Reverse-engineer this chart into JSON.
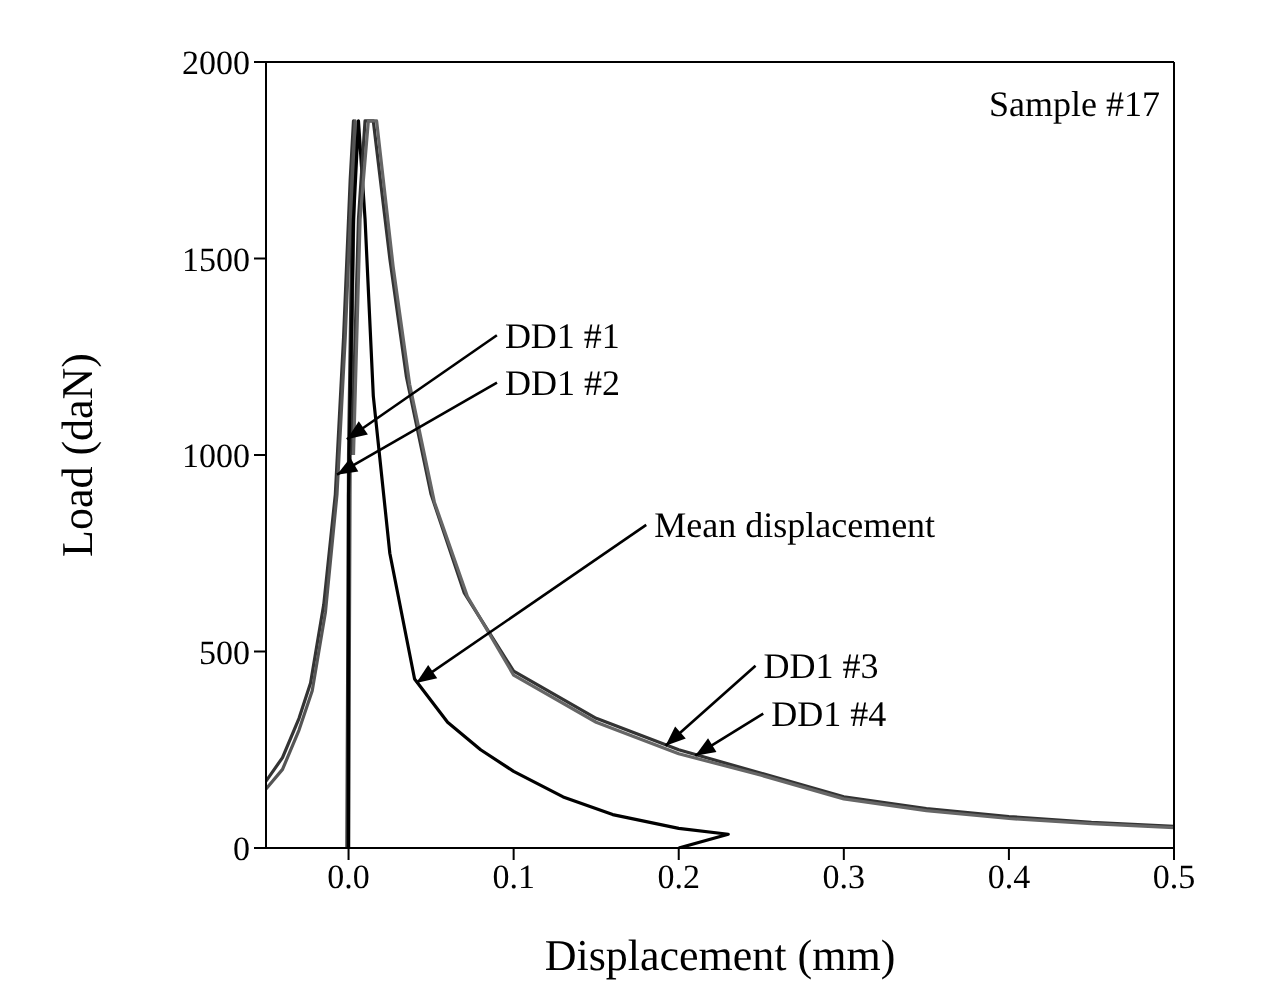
{
  "chart_data": {
    "type": "line",
    "xlabel": "Displacement (mm)",
    "ylabel": "Load (daN)",
    "xlim": [
      -0.05,
      0.5
    ],
    "xticks": [
      {
        "value": 0,
        "label": "0.0"
      },
      0.1,
      0.2,
      0.3,
      0.4,
      0.5
    ],
    "ylim": [
      0,
      2000
    ],
    "yticks": [
      0,
      500,
      1000,
      1500,
      2000
    ],
    "marker": "none",
    "line_style": "solid",
    "series": [
      {
        "color": "#333333",
        "x": [
          -0.05,
          -0.04,
          -0.03,
          -0.023,
          -0.015,
          -0.008,
          -0.003,
          0.001,
          0.003,
          0.0,
          -0.001
        ],
        "values": [
          170,
          230,
          330,
          420,
          620,
          900,
          1300,
          1700,
          1850,
          1000,
          0
        ]
      },
      {
        "color": "#555555",
        "x": [
          -0.05,
          -0.04,
          -0.03,
          -0.022,
          -0.014,
          -0.007,
          -0.002,
          0.002,
          0.004,
          0.001,
          0.0
        ],
        "values": [
          150,
          200,
          300,
          400,
          600,
          900,
          1300,
          1700,
          1850,
          1000,
          0
        ]
      },
      {
        "color": "#000000",
        "x": [
          0.0,
          0.0,
          0.003,
          0.006,
          0.01,
          0.015,
          0.025,
          0.04,
          0.06,
          0.08,
          0.1,
          0.13,
          0.16,
          0.2,
          0.23,
          0.2
        ],
        "values": [
          0,
          900,
          1600,
          1850,
          1600,
          1150,
          750,
          430,
          320,
          250,
          195,
          130,
          85,
          50,
          35,
          0
        ]
      },
      {
        "color": "#333333",
        "x": [
          0.002,
          0.006,
          0.01,
          0.015,
          0.025,
          0.035,
          0.05,
          0.07,
          0.1,
          0.15,
          0.2,
          0.25,
          0.3,
          0.35,
          0.4,
          0.45,
          0.5
        ],
        "values": [
          1000,
          1600,
          1850,
          1850,
          1500,
          1200,
          900,
          650,
          450,
          330,
          250,
          190,
          130,
          100,
          80,
          65,
          55
        ]
      },
      {
        "color": "#666666",
        "x": [
          0.003,
          0.007,
          0.012,
          0.017,
          0.027,
          0.037,
          0.052,
          0.072,
          0.1,
          0.15,
          0.2,
          0.25,
          0.3,
          0.35,
          0.4,
          0.45,
          0.5
        ],
        "values": [
          1000,
          1600,
          1850,
          1850,
          1480,
          1180,
          880,
          640,
          440,
          320,
          240,
          185,
          125,
          95,
          75,
          62,
          52
        ]
      }
    ],
    "annotations": [
      "Sample #17",
      {
        "text": "DD1 #1",
        "x": -0.001,
        "y": 1040
      },
      {
        "text": "DD1 #2",
        "x": -0.007,
        "y": 950
      },
      {
        "text": "Mean displacement",
        "x": 0.041,
        "y": 420
      },
      {
        "text": "DD1 #3",
        "x": 0.192,
        "y": 260
      },
      {
        "text": "DD1 #4",
        "x": 0.21,
        "y": 235
      }
    ]
  }
}
